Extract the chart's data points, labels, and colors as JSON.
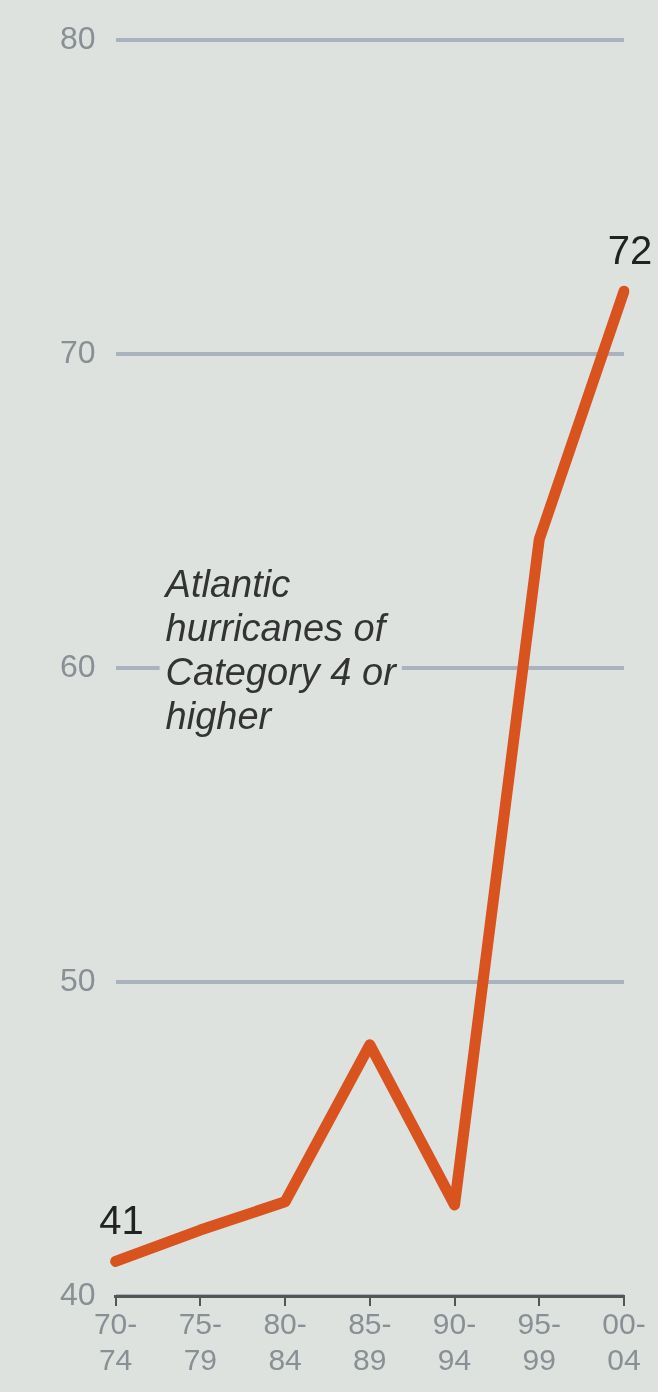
{
  "chart_data": {
    "type": "line",
    "categories": [
      "70-74",
      "75-79",
      "80-84",
      "85-89",
      "90-94",
      "95-99",
      "00-04"
    ],
    "series": [
      {
        "color": "#d9531e",
        "values": [
          41.1,
          42.1,
          43,
          48,
          42.9,
          64.1,
          72
        ],
        "value_labels": [
          "41",
          null,
          null,
          null,
          null,
          null,
          "72"
        ]
      }
    ],
    "ylim": [
      40,
      80
    ],
    "yticks": [
      40,
      50,
      60,
      70,
      80
    ],
    "grid": "y",
    "legend": false,
    "marker": "none",
    "line_style": "solid",
    "annotations": [
      "Atlantic hurricanes of Category 4 or higher"
    ]
  }
}
